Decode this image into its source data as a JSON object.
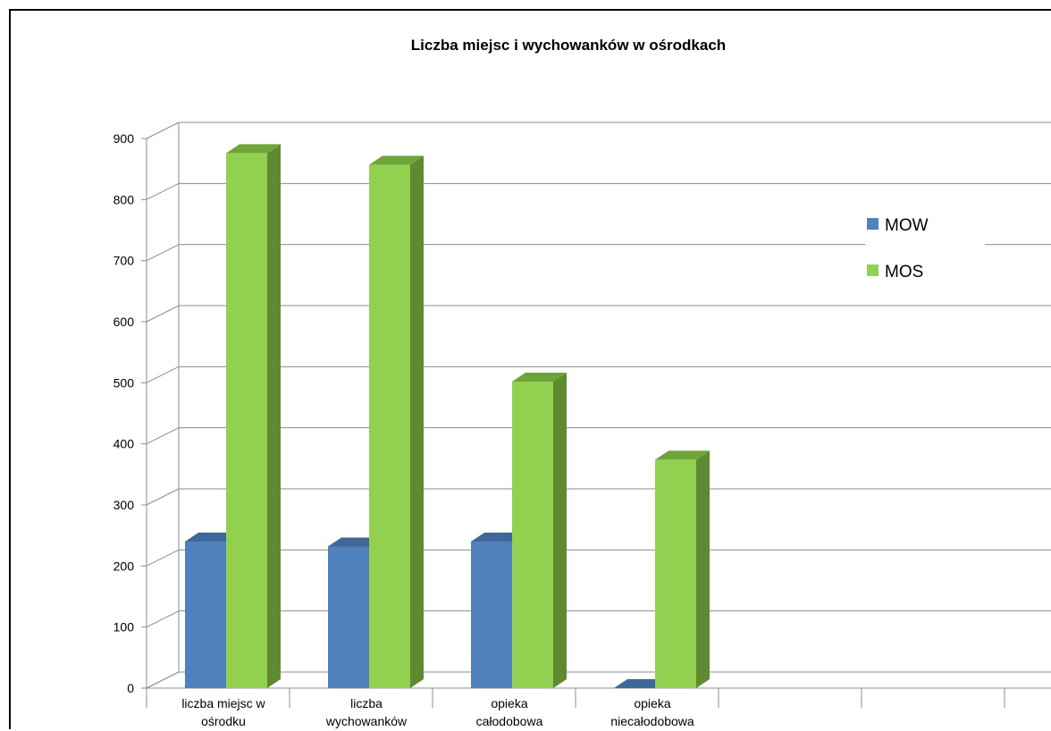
{
  "chart_data": {
    "type": "bar",
    "title": "Liczba miejsc i wychowanków w ośrodkach",
    "categories": [
      [
        "liczba miejsc w",
        "ośrodku"
      ],
      [
        "liczba",
        "wychowanków"
      ],
      [
        "opieka",
        "całodobowa"
      ],
      [
        "opieka",
        "niecałodobowa"
      ]
    ],
    "series": [
      {
        "name": "MOW",
        "values": [
          240,
          232,
          240,
          0
        ],
        "color": "#4f81bd",
        "top_color": "#3f6797",
        "side_color": "#385d8a"
      },
      {
        "name": "MOS",
        "values": [
          876,
          857,
          502,
          374
        ],
        "color": "#92d050",
        "top_color": "#6fa43a",
        "side_color": "#5f8a32"
      }
    ],
    "y_ticks": [
      "0",
      "100",
      "200",
      "300",
      "400",
      "500",
      "600",
      "700",
      "800",
      "900"
    ],
    "ylim": [
      0,
      900
    ],
    "grid": true,
    "legend_position": "right"
  }
}
